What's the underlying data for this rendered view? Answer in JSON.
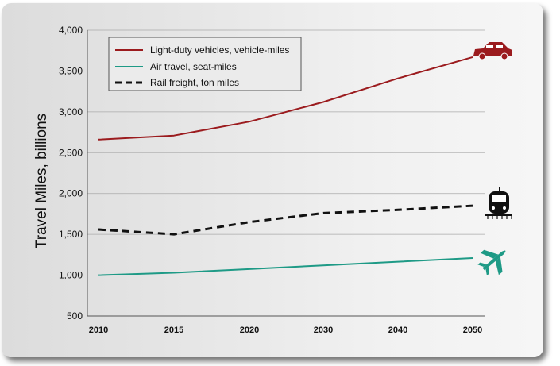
{
  "chart_data": {
    "type": "line",
    "title": "",
    "xlabel": "",
    "ylabel": "Travel Miles, billions",
    "categories": [
      "2010",
      "2015",
      "2020",
      "2030",
      "2040",
      "2050"
    ],
    "ylim": [
      500,
      4000
    ],
    "yticks": [
      "500",
      "1,000",
      "1,500",
      "2,000",
      "2,500",
      "3,000",
      "3,500",
      "4,000"
    ],
    "ytick_values": [
      500,
      1000,
      1500,
      2000,
      2500,
      3000,
      3500,
      4000
    ],
    "grid": true,
    "legend_position": "top-left",
    "series": [
      {
        "name": "Light-duty vehicles, vehicle-miles",
        "values": [
          2660,
          2710,
          2880,
          3120,
          3410,
          3670
        ],
        "color": "#9b1b1e",
        "style": "solid",
        "icon": "car-icon"
      },
      {
        "name": "Air travel, seat-miles",
        "values": [
          1000,
          1030,
          1075,
          1120,
          1165,
          1210
        ],
        "color": "#1e9a86",
        "style": "solid",
        "icon": "airplane-icon"
      },
      {
        "name": "Rail freight, ton miles",
        "values": [
          1560,
          1500,
          1650,
          1760,
          1800,
          1850
        ],
        "color": "#111111",
        "style": "dashed",
        "icon": "train-icon"
      }
    ]
  }
}
